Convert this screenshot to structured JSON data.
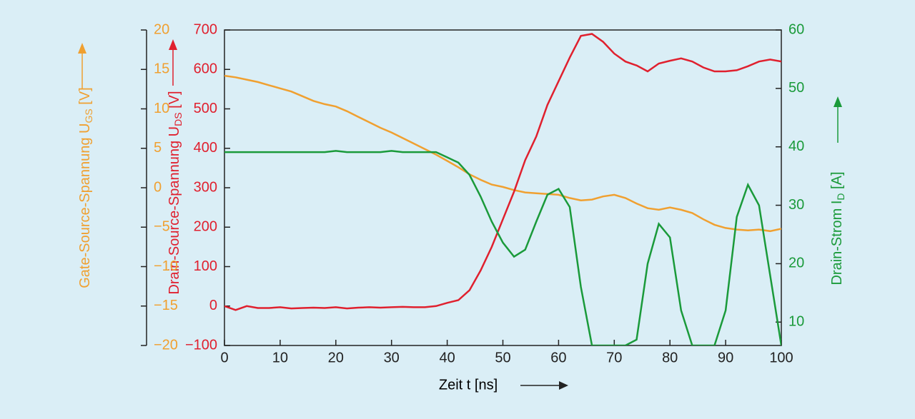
{
  "chart_data": {
    "type": "line",
    "x": [
      0,
      2,
      4,
      6,
      8,
      10,
      12,
      14,
      16,
      18,
      20,
      22,
      24,
      26,
      28,
      30,
      32,
      34,
      36,
      38,
      40,
      42,
      44,
      46,
      48,
      50,
      52,
      54,
      56,
      58,
      60,
      62,
      64,
      66,
      68,
      70,
      72,
      74,
      76,
      78,
      80,
      82,
      84,
      86,
      88,
      90,
      92,
      94,
      96,
      98,
      100
    ],
    "xlim": [
      0,
      100
    ],
    "xticks": [
      0,
      10,
      20,
      30,
      40,
      50,
      60,
      70,
      80,
      90,
      100
    ],
    "xlabel": "Zeit t [ns]",
    "ylim": [
      -100,
      700
    ],
    "yticks": [
      {
        "value": -100,
        "label": "−100"
      },
      0,
      100,
      200,
      300,
      400,
      500,
      600,
      700
    ],
    "ylabel": {
      "text": "Drain-Source-Spannung U",
      "sub": "DS",
      "unit": " [V]"
    },
    "y2lim": [
      6,
      60
    ],
    "y2ticks": [
      10,
      20,
      30,
      40,
      50,
      60
    ],
    "y2label": {
      "text": "Drain-Strom I",
      "sub": "D",
      "unit": " [A]"
    },
    "y3lim": [
      -20,
      20
    ],
    "y3ticks": [
      {
        "value": -20,
        "label": "−20"
      },
      {
        "value": -15,
        "label": "−15"
      },
      {
        "value": -10,
        "label": "−10"
      },
      {
        "value": -5,
        "label": "−5"
      },
      0,
      5,
      10,
      15,
      20
    ],
    "y3label": {
      "text": "Gate-Source-Spannung U",
      "sub": "GS",
      "unit": " [V]"
    },
    "series": [
      {
        "name": "U_GS",
        "color": "#f0a030",
        "axis": "y3",
        "values": [
          14.2,
          14.0,
          13.7,
          13.4,
          13.0,
          12.6,
          12.2,
          11.6,
          11.0,
          10.6,
          10.3,
          9.7,
          9.0,
          8.3,
          7.6,
          7.0,
          6.3,
          5.6,
          4.9,
          4.2,
          3.4,
          2.6,
          1.7,
          1.0,
          0.4,
          0.1,
          -0.3,
          -0.6,
          -0.7,
          -0.8,
          -0.9,
          -1.3,
          -1.6,
          -1.5,
          -1.1,
          -0.9,
          -1.3,
          -2.0,
          -2.6,
          -2.8,
          -2.5,
          -2.8,
          -3.2,
          -4.0,
          -4.7,
          -5.1,
          -5.3,
          -5.4,
          -5.3,
          -5.5,
          -5.2
        ]
      },
      {
        "name": "U_DS",
        "color": "#e0202e",
        "axis": "y",
        "values": [
          0,
          -10,
          0,
          -5,
          -5,
          -3,
          -6,
          -5,
          -4,
          -5,
          -3,
          -6,
          -4,
          -3,
          -4,
          -3,
          -2,
          -3,
          -3,
          0,
          8,
          15,
          40,
          90,
          150,
          220,
          290,
          370,
          430,
          510,
          570,
          630,
          685,
          690,
          670,
          640,
          620,
          610,
          595,
          615,
          622,
          628,
          620,
          605,
          595,
          595,
          598,
          608,
          620,
          625,
          620
        ]
      },
      {
        "name": "I_D",
        "color": "#1a9a3a",
        "axis": "y2",
        "values": [
          39.1,
          39.1,
          39.1,
          39.1,
          39.1,
          39.1,
          39.1,
          39.1,
          39.1,
          39.1,
          39.3,
          39.1,
          39.1,
          39.1,
          39.1,
          39.3,
          39.1,
          39.1,
          39.1,
          39.1,
          38.2,
          37.3,
          35.2,
          31.5,
          27.2,
          23.6,
          21.2,
          22.4,
          27.2,
          31.8,
          32.8,
          29.7,
          16,
          6,
          6,
          6,
          6,
          7,
          20,
          26.8,
          24.5,
          12,
          6,
          6,
          6,
          12,
          28,
          33.5,
          30,
          18,
          6
        ]
      }
    ]
  }
}
